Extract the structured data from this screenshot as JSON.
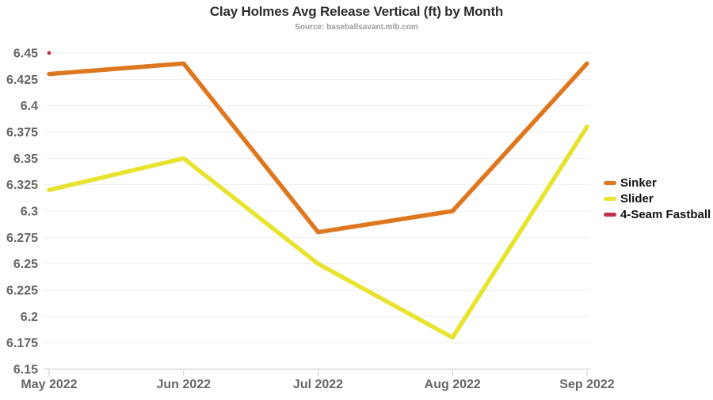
{
  "chart_data": {
    "type": "line",
    "title": "Clay Holmes Avg Release Vertical (ft) by Month",
    "source": "Source: baseballsavant.mlb.com",
    "xlabel": "",
    "ylabel": "",
    "x_categories": [
      "May 2022",
      "Jun 2022",
      "Jul 2022",
      "Aug 2022",
      "Sep 2022"
    ],
    "series": [
      {
        "name": "Sinker",
        "color": "#DE7820",
        "values": [
          6.43,
          6.44,
          6.28,
          6.3,
          6.44
        ]
      },
      {
        "name": "Slider",
        "color": "#E8E32F",
        "values": [
          6.32,
          6.35,
          6.25,
          6.18,
          6.38
        ]
      },
      {
        "name": "4-Seam Fastball",
        "color": "#C22F4D",
        "values": [
          6.45,
          null,
          null,
          null,
          null
        ]
      }
    ],
    "ylim": [
      6.15,
      6.45
    ],
    "yticks": [
      6.15,
      6.175,
      6.2,
      6.225,
      6.25,
      6.275,
      6.3,
      6.325,
      6.35,
      6.375,
      6.4,
      6.425,
      6.45
    ],
    "ytick_labels": [
      "6.15",
      "6.175",
      "6.2",
      "6.225",
      "6.25",
      "6.275",
      "6.3",
      "6.325",
      "6.35",
      "6.375",
      "6.4",
      "6.425",
      "6.45"
    ],
    "grid": "horizontal",
    "legend_position": "right"
  },
  "colors": {
    "title_text": "#2d2d2d",
    "source_text": "#9c9c9c",
    "axis_text": "#666666",
    "legend_text": "#111111",
    "gridline": "#efefef",
    "axis_line": "#cccccc"
  }
}
